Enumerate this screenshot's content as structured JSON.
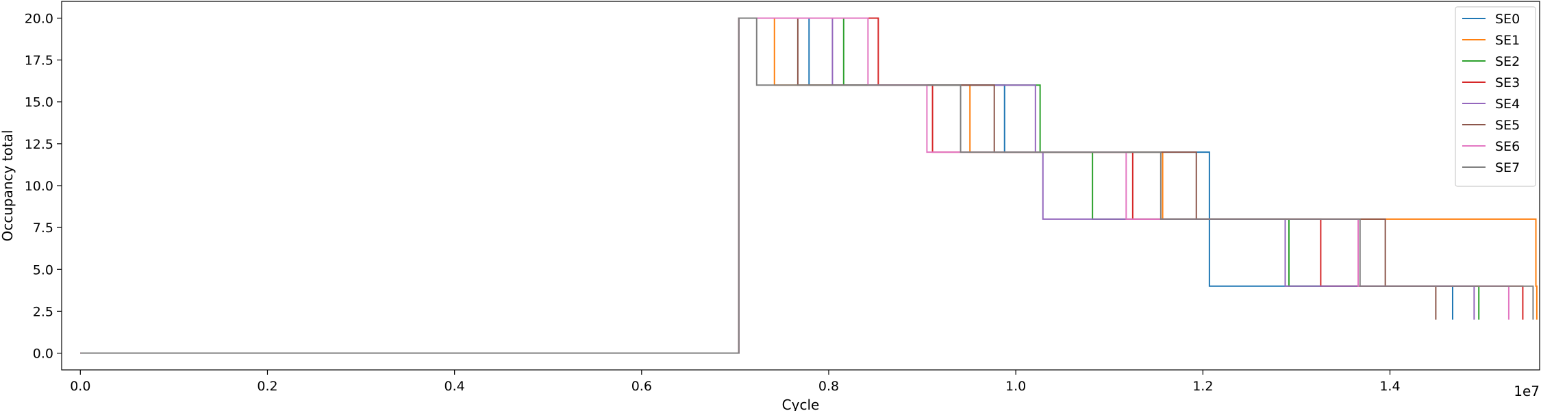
{
  "chart_data": {
    "type": "line",
    "title": "",
    "xlabel": "Cycle",
    "ylabel": "Occupancy total",
    "x_offset_label": "1e7",
    "xlim": [
      -0.02,
      1.56
    ],
    "ylim": [
      -1.0,
      21.0
    ],
    "x_ticks": [
      0.0,
      0.2,
      0.4,
      0.6,
      0.8,
      1.0,
      1.2,
      1.4
    ],
    "x_tick_labels": [
      "0.0",
      "0.2",
      "0.4",
      "0.6",
      "0.8",
      "1.0",
      "1.2",
      "1.4"
    ],
    "y_ticks": [
      0.0,
      2.5,
      5.0,
      7.5,
      10.0,
      12.5,
      15.0,
      17.5,
      20.0
    ],
    "y_tick_labels": [
      "0.0",
      "2.5",
      "5.0",
      "7.5",
      "10.0",
      "12.5",
      "15.0",
      "17.5",
      "20.0"
    ],
    "grid": false,
    "legend_position": "top-right",
    "series": [
      {
        "name": "SE0",
        "color": "#1f77b4",
        "steps": [
          [
            0.0,
            0
          ],
          [
            0.704,
            20
          ],
          [
            0.779,
            16
          ],
          [
            0.988,
            12
          ],
          [
            1.207,
            4
          ],
          [
            1.467,
            2
          ]
        ]
      },
      {
        "name": "SE1",
        "color": "#ff7f0e",
        "steps": [
          [
            0.0,
            0
          ],
          [
            0.704,
            20
          ],
          [
            0.742,
            16
          ],
          [
            0.951,
            12
          ],
          [
            1.157,
            8
          ],
          [
            1.556,
            4
          ],
          [
            1.557,
            2
          ]
        ]
      },
      {
        "name": "SE2",
        "color": "#2ca02c",
        "steps": [
          [
            0.0,
            0
          ],
          [
            0.704,
            20
          ],
          [
            0.816,
            16
          ],
          [
            1.026,
            12
          ],
          [
            1.082,
            8
          ],
          [
            1.292,
            4
          ],
          [
            1.495,
            2
          ]
        ]
      },
      {
        "name": "SE3",
        "color": "#d62728",
        "steps": [
          [
            0.0,
            0
          ],
          [
            0.704,
            20
          ],
          [
            0.853,
            16
          ],
          [
            0.911,
            12
          ],
          [
            1.125,
            8
          ],
          [
            1.326,
            4
          ],
          [
            1.542,
            2
          ]
        ]
      },
      {
        "name": "SE4",
        "color": "#9467bd",
        "steps": [
          [
            0.0,
            0
          ],
          [
            0.704,
            20
          ],
          [
            0.804,
            16
          ],
          [
            1.021,
            12
          ],
          [
            1.029,
            8
          ],
          [
            1.288,
            4
          ],
          [
            1.49,
            2
          ]
        ]
      },
      {
        "name": "SE5",
        "color": "#8c564b",
        "steps": [
          [
            0.0,
            0
          ],
          [
            0.704,
            20
          ],
          [
            0.767,
            16
          ],
          [
            0.977,
            12
          ],
          [
            1.193,
            8
          ],
          [
            1.395,
            4
          ],
          [
            1.449,
            2
          ]
        ]
      },
      {
        "name": "SE6",
        "color": "#e377c2",
        "steps": [
          [
            0.0,
            0
          ],
          [
            0.704,
            20
          ],
          [
            0.842,
            16
          ],
          [
            0.905,
            12
          ],
          [
            1.118,
            8
          ],
          [
            1.366,
            4
          ],
          [
            1.527,
            2
          ]
        ]
      },
      {
        "name": "SE7",
        "color": "#7f7f7f",
        "steps": [
          [
            0.0,
            0
          ],
          [
            0.704,
            20
          ],
          [
            0.723,
            16
          ],
          [
            0.941,
            12
          ],
          [
            1.155,
            8
          ],
          [
            1.368,
            4
          ],
          [
            1.553,
            2
          ]
        ]
      }
    ]
  }
}
